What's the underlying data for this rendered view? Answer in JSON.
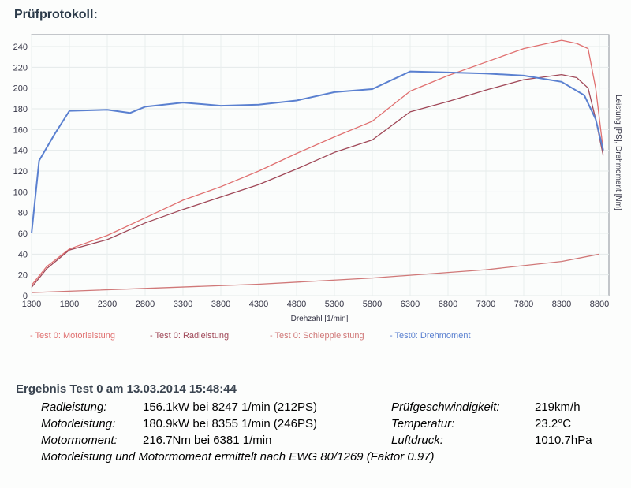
{
  "header": {
    "title": "Prüfprotokoll:"
  },
  "chart_data": {
    "type": "line",
    "xlabel": "Drehzahl [1/min]",
    "ylabel": "Leistung [PS], Drehmoment [Nm]",
    "xlim": [
      1300,
      8900
    ],
    "ylim": [
      0,
      250
    ],
    "xticks": [
      1300,
      1800,
      2300,
      2800,
      3300,
      3800,
      4300,
      4800,
      5300,
      5800,
      6300,
      6800,
      7300,
      7800,
      8300,
      8800
    ],
    "yticks": [
      0,
      20,
      40,
      60,
      80,
      100,
      120,
      140,
      160,
      180,
      200,
      220,
      240
    ],
    "grid": true,
    "legend_position": "bottom",
    "series": [
      {
        "name": "- Test 0: Motorleistung",
        "color": "#e07070",
        "x": [
          1300,
          1500,
          1800,
          2300,
          2800,
          3300,
          3800,
          4300,
          4800,
          5300,
          5800,
          6300,
          6800,
          7300,
          7800,
          8300,
          8500,
          8650,
          8750,
          8850
        ],
        "y": [
          10,
          28,
          45,
          58,
          75,
          92,
          105,
          120,
          137,
          153,
          168,
          197,
          212,
          225,
          238,
          246,
          243,
          238,
          200,
          140
        ]
      },
      {
        "name": "- Test 0: Radleistung",
        "color": "#a04858",
        "x": [
          1300,
          1500,
          1800,
          2300,
          2800,
          3300,
          3800,
          4300,
          4800,
          5300,
          5800,
          6300,
          6800,
          7300,
          7800,
          8300,
          8500,
          8650,
          8750,
          8850
        ],
        "y": [
          8,
          26,
          44,
          54,
          70,
          83,
          95,
          107,
          122,
          138,
          150,
          177,
          187,
          198,
          208,
          213,
          210,
          200,
          170,
          135
        ]
      },
      {
        "name": "- Test 0: Schleppleistung",
        "color": "#d07878",
        "x": [
          1300,
          2800,
          4300,
          5800,
          7300,
          8300,
          8800
        ],
        "y": [
          3,
          7,
          11,
          17,
          25,
          33,
          40
        ]
      },
      {
        "name": "- Test0: Drehmoment",
        "color": "#5a80d0",
        "x": [
          1300,
          1400,
          1600,
          1800,
          2300,
          2600,
          2800,
          3300,
          3800,
          4300,
          4800,
          5300,
          5800,
          6300,
          6800,
          7300,
          7800,
          8300,
          8600,
          8750,
          8850
        ],
        "y": [
          60,
          130,
          155,
          178,
          179,
          176,
          182,
          186,
          183,
          184,
          188,
          196,
          199,
          216,
          215,
          214,
          212,
          206,
          193,
          170,
          140
        ]
      }
    ]
  },
  "results": {
    "heading": "Ergebnis Test 0 am 13.03.2014 15:48:44",
    "rows": [
      {
        "label": "Radleistung:",
        "value": "156.1kW  bei 8247 1/min (212PS)",
        "label2": "Prüfgeschwindigkeit:",
        "value2": "219km/h"
      },
      {
        "label": "Motorleistung:",
        "value": "180.9kW  bei 8355 1/min (246PS)",
        "label2": "Temperatur:",
        "value2": "23.2°C"
      },
      {
        "label": "Motormoment:",
        "value": "216.7Nm  bei 6381 1/min",
        "label2": "Luftdruck:",
        "value2": "1010.7hPa"
      }
    ],
    "note": "Motorleistung und Motormoment ermittelt nach EWG 80/1269 (Faktor 0.97)"
  }
}
